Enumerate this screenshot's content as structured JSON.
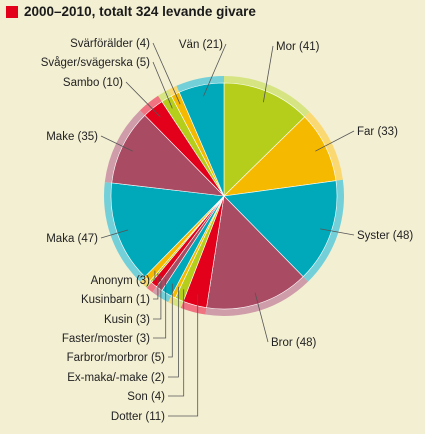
{
  "chart_data": {
    "type": "pie",
    "title": "2000–2010, totalt 324 levande givare",
    "total": 324,
    "start": "12 o'clock",
    "direction": "clockwise",
    "slices": [
      {
        "label": "Mor (41)",
        "value": 41,
        "color": "#B5CE1B"
      },
      {
        "label": "Far (33)",
        "value": 33,
        "color": "#F5BA00"
      },
      {
        "label": "Syster (48)",
        "value": 48,
        "color": "#00A9BA"
      },
      {
        "label": "Bror (48)",
        "value": 48,
        "color": "#A84B63"
      },
      {
        "label": "Dotter (11)",
        "value": 11,
        "color": "#E2001A"
      },
      {
        "label": "Son (4)",
        "value": 4,
        "color": "#B5CE1B"
      },
      {
        "label": "Ex-maka/-make (2)",
        "value": 2,
        "color": "#F5BA00"
      },
      {
        "label": "Farbror/morbror (5)",
        "value": 5,
        "color": "#00A9BA"
      },
      {
        "label": "Faster/moster (3)",
        "value": 3,
        "color": "#A84B63"
      },
      {
        "label": "Kusin (3)",
        "value": 3,
        "color": "#E2001A"
      },
      {
        "label": "Kusinbarn (1)",
        "value": 1,
        "color": "#B5CE1B"
      },
      {
        "label": "Anonym (3)",
        "value": 3,
        "color": "#F5BA00"
      },
      {
        "label": "Maka (47)",
        "value": 47,
        "color": "#00A9BA"
      },
      {
        "label": "Make (35)",
        "value": 35,
        "color": "#A84B63"
      },
      {
        "label": "Sambo (10)",
        "value": 10,
        "color": "#E2001A"
      },
      {
        "label": "Svåger/svägerska (5)",
        "value": 5,
        "color": "#B5CE1B"
      },
      {
        "label": "Svärförälder (4)",
        "value": 4,
        "color": "#F5BA00"
      },
      {
        "label": "Vän (21)",
        "value": 21,
        "color": "#00A9BA"
      }
    ]
  },
  "colors": {
    "accent": "#E2001A",
    "background": "#F3EFD3"
  }
}
